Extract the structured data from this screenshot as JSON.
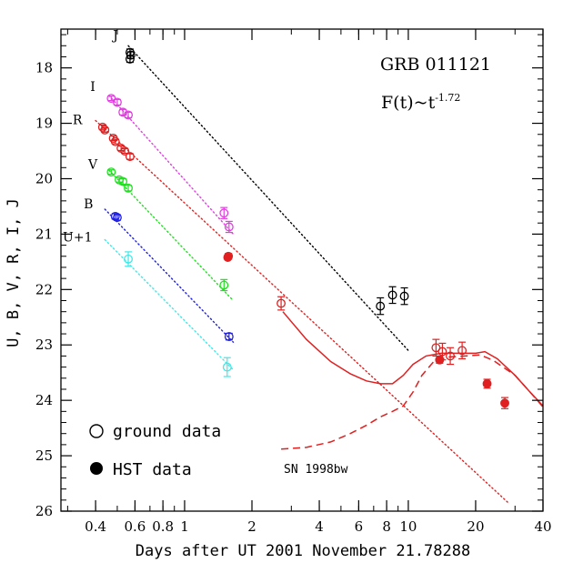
{
  "chart_data": {
    "type": "scatter",
    "x_scale": "log",
    "xlim": [
      0.28,
      40
    ],
    "ylim": [
      26,
      17.3
    ],
    "xlabel": "Days after UT 2001 November 21.78288",
    "ylabel": "U, B, V, R, I, J",
    "x_ticks": [
      0.4,
      0.6,
      0.8,
      1,
      2,
      4,
      6,
      8,
      10,
      20,
      40
    ],
    "x_tick_labels": [
      "0.4",
      "0.6",
      "0.8",
      "1",
      "2",
      "4",
      "6",
      "8",
      "10",
      "20",
      "40"
    ],
    "y_ticks": [
      18,
      19,
      20,
      21,
      22,
      23,
      24,
      25,
      26
    ],
    "y_tick_labels": [
      "18",
      "19",
      "20",
      "21",
      "22",
      "23",
      "24",
      "25",
      "26"
    ],
    "annotations": {
      "title": "GRB 011121",
      "formula_prefix": "F(t)~t",
      "formula_exponent": "-1.72",
      "sn_label": "SN 1998bw"
    },
    "legend": {
      "placement": "bottom-left",
      "open": "ground data",
      "filled": "HST data"
    },
    "series": [
      {
        "name": "J",
        "color": "#000000",
        "fit": [
          [
            0.56,
            17.6
          ],
          [
            10.0,
            23.1
          ]
        ],
        "ground": [
          [
            0.57,
            17.72,
            0.06
          ],
          [
            0.575,
            17.77,
            0.06
          ],
          [
            0.57,
            17.84,
            0.06
          ],
          [
            7.5,
            22.3,
            0.15
          ],
          [
            8.5,
            22.1,
            0.15
          ],
          [
            9.6,
            22.12,
            0.15
          ]
        ],
        "hst": []
      },
      {
        "name": "I",
        "color": "#e040e0",
        "fit": [
          [
            0.46,
            18.5
          ],
          [
            1.65,
            21.0
          ]
        ],
        "ground": [
          [
            0.47,
            18.55,
            0.04
          ],
          [
            0.5,
            18.62,
            0.05
          ],
          [
            0.53,
            18.8,
            0.05
          ],
          [
            0.56,
            18.85,
            0.05
          ],
          [
            1.5,
            20.62,
            0.1
          ],
          [
            1.58,
            20.87,
            0.1
          ]
        ],
        "hst": []
      },
      {
        "name": "R",
        "color": "#e02020",
        "fit": [
          [
            0.4,
            18.95
          ],
          [
            28.0,
            25.85
          ]
        ],
        "ground": [
          [
            0.43,
            19.07,
            0.04
          ],
          [
            0.44,
            19.12,
            0.04
          ],
          [
            0.48,
            19.27,
            0.04
          ],
          [
            0.49,
            19.33,
            0.04
          ],
          [
            0.52,
            19.45,
            0.04
          ],
          [
            0.54,
            19.5,
            0.04
          ],
          [
            0.57,
            19.6,
            0.05
          ],
          [
            1.57,
            21.4,
            0.05
          ],
          [
            2.7,
            22.25,
            0.12
          ],
          [
            13.3,
            23.05,
            0.15
          ],
          [
            14.2,
            23.12,
            0.15
          ],
          [
            15.4,
            23.2,
            0.15
          ],
          [
            17.4,
            23.1,
            0.15
          ]
        ],
        "hst": [
          [
            1.56,
            21.42,
            0.04
          ],
          [
            13.8,
            23.27,
            0.06
          ],
          [
            22.5,
            23.7,
            0.08
          ],
          [
            27.0,
            24.05,
            0.1
          ]
        ]
      },
      {
        "name": "V",
        "color": "#20e020",
        "fit": [
          [
            0.46,
            19.85
          ],
          [
            1.65,
            22.2
          ]
        ],
        "ground": [
          [
            0.47,
            19.88,
            0.04
          ],
          [
            0.51,
            20.02,
            0.04
          ],
          [
            0.53,
            20.05,
            0.05
          ],
          [
            0.56,
            20.17,
            0.05
          ],
          [
            1.5,
            21.92,
            0.1
          ]
        ],
        "hst": []
      },
      {
        "name": "B",
        "color": "#2020e0",
        "fit": [
          [
            0.44,
            20.55
          ],
          [
            1.65,
            22.95
          ]
        ],
        "ground": [
          [
            0.49,
            20.68,
            0.05
          ],
          [
            0.5,
            20.7,
            0.05
          ],
          [
            1.58,
            22.85,
            0.06
          ]
        ],
        "hst": []
      },
      {
        "name": "U+1",
        "color": "#40e8e8",
        "fit": [
          [
            0.44,
            21.1
          ],
          [
            1.65,
            23.45
          ]
        ],
        "ground": [
          [
            0.56,
            21.45,
            0.13
          ],
          [
            1.55,
            23.4,
            0.17
          ]
        ],
        "hst": []
      }
    ],
    "model_curves": [
      {
        "style": "solid",
        "color": "#e02020",
        "points": [
          [
            2.75,
            22.4
          ],
          [
            3.5,
            22.9
          ],
          [
            4.5,
            23.3
          ],
          [
            5.5,
            23.52
          ],
          [
            6.5,
            23.65
          ],
          [
            7.5,
            23.7
          ],
          [
            8.5,
            23.7
          ],
          [
            9.5,
            23.55
          ],
          [
            10.5,
            23.35
          ],
          [
            12,
            23.2
          ],
          [
            14,
            23.15
          ],
          [
            17,
            23.15
          ],
          [
            20,
            23.15
          ],
          [
            22,
            23.12
          ],
          [
            25,
            23.25
          ],
          [
            30,
            23.55
          ],
          [
            35,
            23.85
          ],
          [
            40,
            24.1
          ]
        ]
      },
      {
        "style": "dashed",
        "color": "#e02020",
        "points": [
          [
            2.7,
            24.88
          ],
          [
            3.5,
            24.85
          ],
          [
            4.5,
            24.75
          ],
          [
            5.5,
            24.6
          ],
          [
            6.5,
            24.45
          ],
          [
            7.5,
            24.3
          ],
          [
            8.5,
            24.2
          ],
          [
            9.5,
            24.1
          ],
          [
            10.5,
            23.85
          ],
          [
            11.5,
            23.55
          ],
          [
            13,
            23.3
          ],
          [
            15,
            23.22
          ],
          [
            18,
            23.2
          ],
          [
            21,
            23.18
          ],
          [
            24,
            23.28
          ],
          [
            30,
            23.55
          ],
          [
            35,
            23.85
          ],
          [
            40,
            24.12
          ]
        ]
      }
    ],
    "band_labels": [
      {
        "text": "J",
        "color": "#000000"
      },
      {
        "text": "I",
        "color": "#000000"
      },
      {
        "text": "R",
        "color": "#000000"
      },
      {
        "text": "V",
        "color": "#000000"
      },
      {
        "text": "B",
        "color": "#000000"
      },
      {
        "text": "U+1",
        "color": "#000000"
      }
    ]
  }
}
